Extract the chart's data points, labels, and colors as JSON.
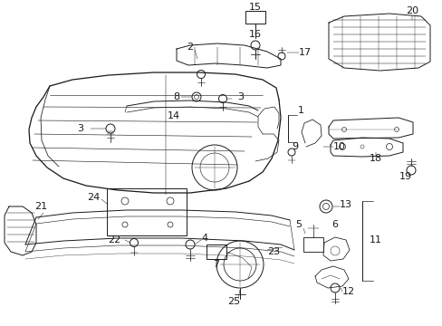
{
  "background_color": "#ffffff",
  "fig_width": 4.89,
  "fig_height": 3.6,
  "dpi": 100,
  "line_color": "#1a1a1a",
  "line_width": 0.7
}
